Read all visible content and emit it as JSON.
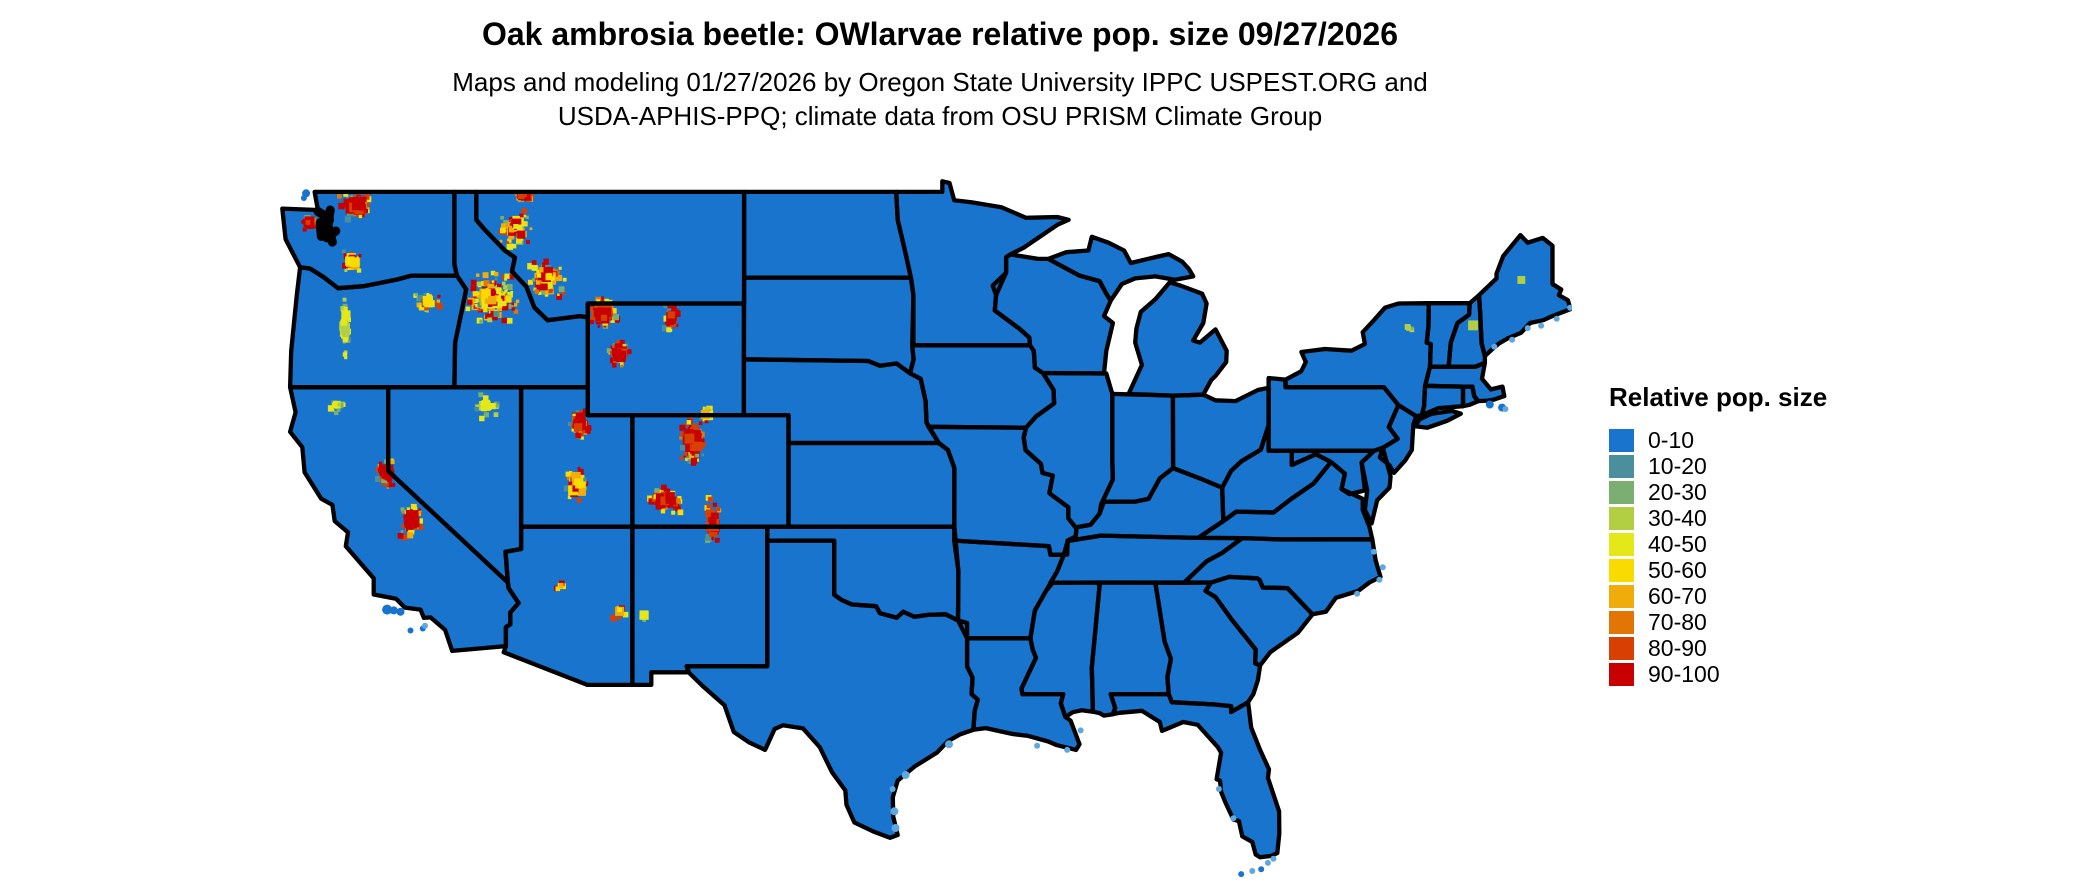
{
  "figure": {
    "title": "Oak ambrosia beetle: OWlarvae relative pop. size 09/27/2026",
    "subtitle_line1": "Maps and modeling 01/27/2026 by Oregon State University IPPC USPEST.ORG and",
    "subtitle_line2": "USDA-APHIS-PPQ; climate data from OSU PRISM Climate Group"
  },
  "legend": {
    "title": "Relative pop. size",
    "items": [
      {
        "label": "0-10",
        "color": "#1874CD"
      },
      {
        "label": "10-20",
        "color": "#4B8F9C"
      },
      {
        "label": "20-30",
        "color": "#7BAE71"
      },
      {
        "label": "30-40",
        "color": "#B2CF44"
      },
      {
        "label": "40-50",
        "color": "#E4E819"
      },
      {
        "label": "50-60",
        "color": "#FADB00"
      },
      {
        "label": "60-70",
        "color": "#EFAC0A"
      },
      {
        "label": "70-80",
        "color": "#E27503"
      },
      {
        "label": "80-90",
        "color": "#D74002"
      },
      {
        "label": "90-100",
        "color": "#C90002"
      }
    ]
  },
  "map": {
    "region": "Contiguous United States",
    "land_color": "#1874CD",
    "border_color": "#000000",
    "water_fringe_color": "#5FA8DF",
    "background_color": "#FFFFFF"
  }
}
